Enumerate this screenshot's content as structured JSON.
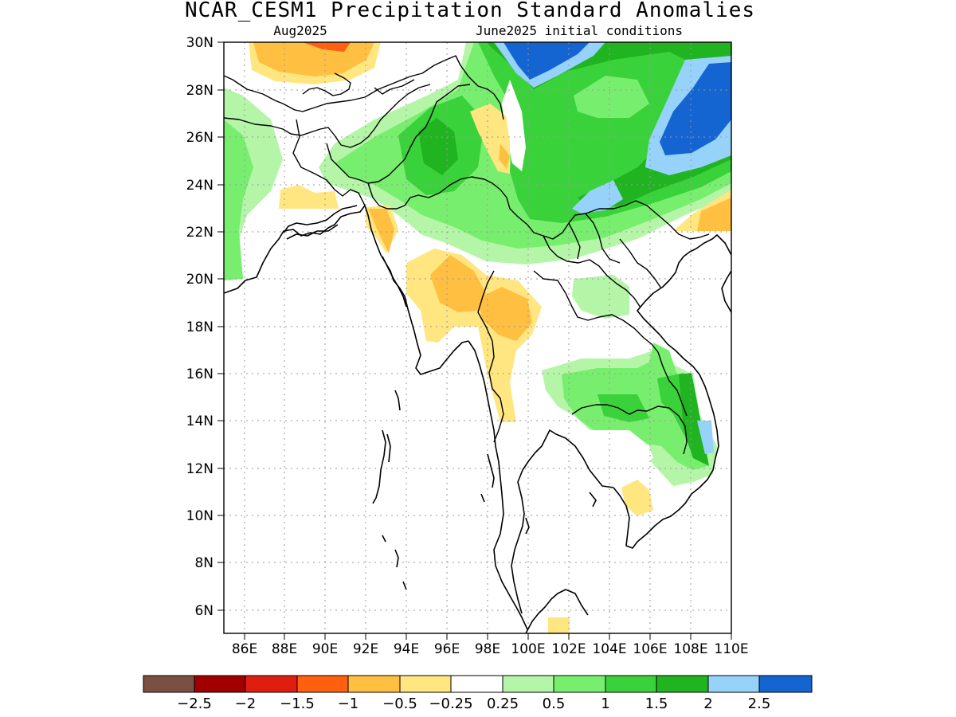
{
  "title": "NCAR_CESM1 Precipitation Standard Anomalies",
  "subtitle_left": "Aug2025",
  "subtitle_right": "June2025 initial conditions",
  "map": {
    "lon_range": [
      85,
      110
    ],
    "lat_range": [
      5,
      30
    ],
    "lat_labels": [
      "6N",
      "8N",
      "10N",
      "12N",
      "14N",
      "16N",
      "18N",
      "20N",
      "22N",
      "24N",
      "26N",
      "28N",
      "30N"
    ],
    "lon_labels": [
      "86E",
      "88E",
      "90E",
      "92E",
      "94E",
      "96E",
      "98E",
      "100E",
      "102E",
      "104E",
      "106E",
      "108E",
      "110E"
    ]
  },
  "colorbar": {
    "colors": [
      "#7a5045",
      "#a00000",
      "#e01e10",
      "#ff6010",
      "#ffbf40",
      "#ffe680",
      "#ffffff",
      "#b4f5a8",
      "#78ee6e",
      "#3ad23a",
      "#20b420",
      "#96d2fa",
      "#1464d2"
    ],
    "labels": [
      "−2.5",
      "−2",
      "−1.5",
      "−1",
      "−0.5",
      "−0.25",
      "0.25",
      "0.5",
      "1",
      "1.5",
      "2",
      "2.5"
    ]
  }
}
